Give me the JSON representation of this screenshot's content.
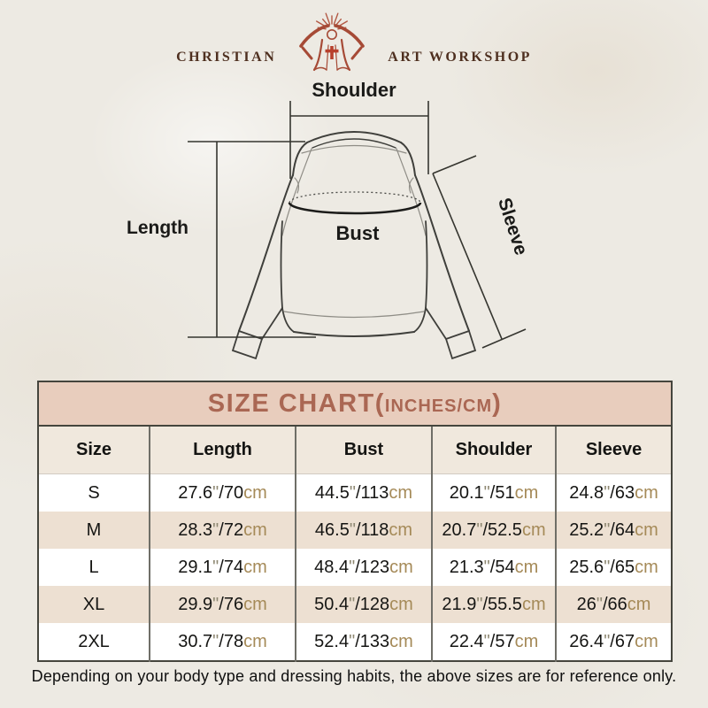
{
  "page": {
    "background_color": "#edeae3",
    "footer_note": "Depending on your body type and dressing habits, the above sizes are for reference only."
  },
  "logo": {
    "left_text": "CHRISTIAN",
    "right_text": "ART WORKSHOP",
    "icon": "jesus-with-rays-and-cross-icon",
    "text_color": "#4e2f1f",
    "icon_color": "#a64a36"
  },
  "diagram": {
    "labels": {
      "shoulder": "Shoulder",
      "length": "Length",
      "bust": "Bust",
      "sleeve": "Sleeve"
    }
  },
  "size_chart": {
    "title": {
      "main": "SIZE CHART",
      "paren_open": "(",
      "unit": "INCHES/CM",
      "paren_close": ")"
    },
    "title_bg": "#e8cdbd",
    "title_color": "#aa6753",
    "header_bg": "#f0e8dd",
    "alt_row_bg": "#ede0d2",
    "cm_color": "#a58a58",
    "units": {
      "inch_mark": "\"",
      "slash": "/",
      "cm": "cm"
    },
    "columns": [
      "Size",
      "Length",
      "Bust",
      "Shoulder",
      "Sleeve"
    ],
    "rows": [
      {
        "size": "S",
        "length": {
          "in": "27.6",
          "cm": "70"
        },
        "bust": {
          "in": "44.5",
          "cm": "113"
        },
        "shoulder": {
          "in": "20.1",
          "cm": "51"
        },
        "sleeve": {
          "in": "24.8",
          "cm": "63"
        }
      },
      {
        "size": "M",
        "length": {
          "in": "28.3",
          "cm": "72"
        },
        "bust": {
          "in": "46.5",
          "cm": "118"
        },
        "shoulder": {
          "in": "20.7",
          "cm": "52.5"
        },
        "sleeve": {
          "in": "25.2",
          "cm": "64"
        }
      },
      {
        "size": "L",
        "length": {
          "in": "29.1",
          "cm": "74"
        },
        "bust": {
          "in": "48.4",
          "cm": "123"
        },
        "shoulder": {
          "in": "21.3",
          "cm": "54"
        },
        "sleeve": {
          "in": "25.6",
          "cm": "65"
        }
      },
      {
        "size": "XL",
        "length": {
          "in": "29.9",
          "cm": "76"
        },
        "bust": {
          "in": "50.4",
          "cm": "128"
        },
        "shoulder": {
          "in": "21.9",
          "cm": "55.5"
        },
        "sleeve": {
          "in": "26",
          "cm": "66"
        }
      },
      {
        "size": "2XL",
        "length": {
          "in": "30.7",
          "cm": "78"
        },
        "bust": {
          "in": "52.4",
          "cm": "133"
        },
        "shoulder": {
          "in": "22.4",
          "cm": "57"
        },
        "sleeve": {
          "in": "26.4",
          "cm": "67"
        }
      }
    ]
  },
  "chart_data": {
    "type": "table",
    "title": "SIZE CHART(INCHES/CM)",
    "columns": [
      "Size",
      "Length",
      "Bust",
      "Shoulder",
      "Sleeve"
    ],
    "rows": [
      [
        "S",
        "27.6\"/70cm",
        "44.5\"/113cm",
        "20.1\"/51cm",
        "24.8\"/63cm"
      ],
      [
        "M",
        "28.3\"/72cm",
        "46.5\"/118cm",
        "20.7\"/52.5cm",
        "25.2\"/64cm"
      ],
      [
        "L",
        "29.1\"/74cm",
        "48.4\"/123cm",
        "21.3\"/54cm",
        "25.6\"/65cm"
      ],
      [
        "XL",
        "29.9\"/76cm",
        "50.4\"/128cm",
        "21.9\"/55.5cm",
        "26\"/66cm"
      ],
      [
        "2XL",
        "30.7\"/78cm",
        "52.4\"/133cm",
        "22.4\"/57cm",
        "26.4\"/67cm"
      ]
    ]
  }
}
